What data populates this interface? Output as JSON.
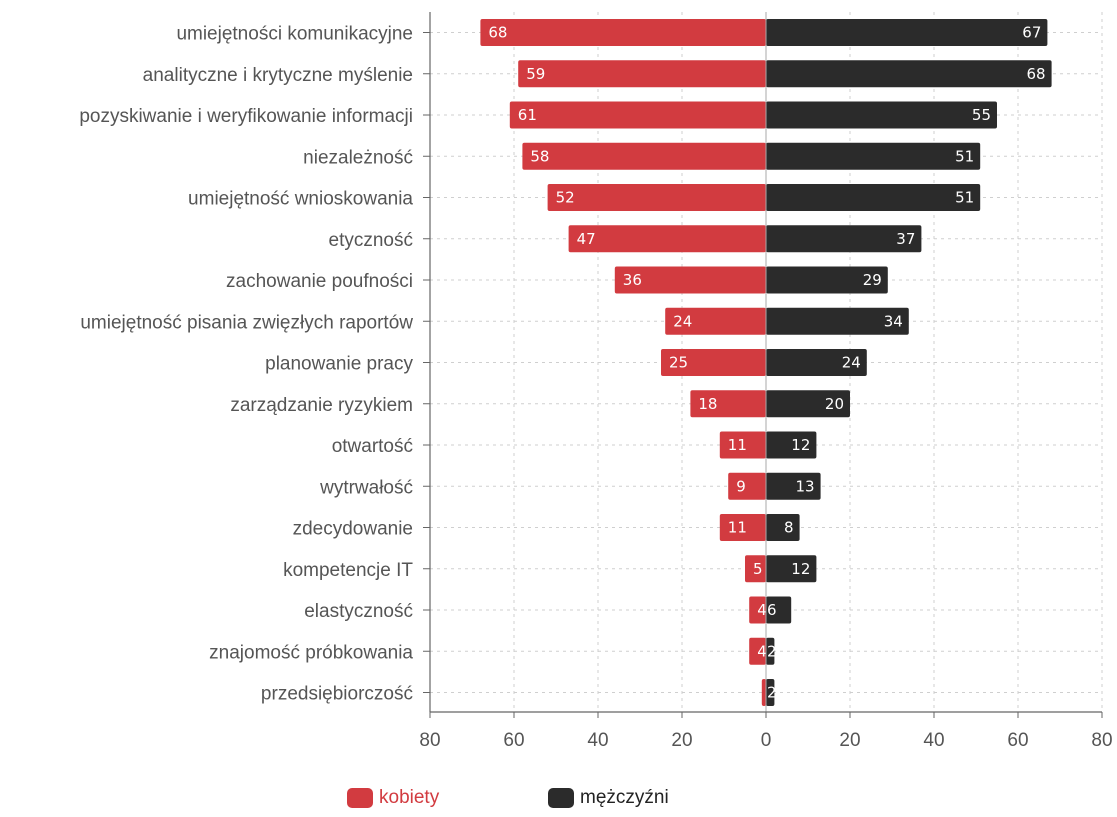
{
  "chart_data": {
    "type": "bar",
    "orientation": "horizontal-diverging",
    "categories": [
      "umiejętności komunikacyjne",
      "analityczne i krytyczne myślenie",
      "pozyskiwanie i weryfikowanie informacji",
      "niezależność",
      "umiejętność wnioskowania",
      "etyczność",
      "zachowanie poufności",
      "umiejętność pisania zwięzłych raportów",
      "planowanie pracy",
      "zarządzanie ryzykiem",
      "otwartość",
      "wytrwałość",
      "zdecydowanie",
      "kompetencje IT",
      "elastyczność",
      "znajomość próbkowania",
      "przedsiębiorczość"
    ],
    "series": [
      {
        "name": "kobiety",
        "color": "#d23b40",
        "values": [
          68,
          59,
          61,
          58,
          52,
          47,
          36,
          24,
          25,
          18,
          11,
          9,
          11,
          5,
          4,
          4,
          1
        ]
      },
      {
        "name": "mężczyźni",
        "color": "#2b2b2b",
        "values": [
          67,
          68,
          55,
          51,
          51,
          37,
          29,
          34,
          24,
          20,
          12,
          13,
          8,
          12,
          6,
          2,
          2
        ]
      }
    ],
    "data_labels": {
      "kobiety": [
        "68",
        "59",
        "61",
        "58",
        "52",
        "47",
        "36",
        "24",
        "25",
        "18",
        "11",
        "9",
        "11",
        "5",
        "4",
        "4",
        ""
      ],
      "mężczyźni": [
        "67",
        "68",
        "55",
        "51",
        "51",
        "37",
        "29",
        "34",
        "24",
        "20",
        "12",
        "13",
        "8",
        "12",
        "6",
        "2",
        "2"
      ]
    },
    "x_ticks": [
      "80",
      "60",
      "40",
      "20",
      "0",
      "20",
      "40",
      "60",
      "80"
    ],
    "xlim": [
      -80,
      80
    ],
    "grid": true,
    "legend_position": "bottom"
  }
}
